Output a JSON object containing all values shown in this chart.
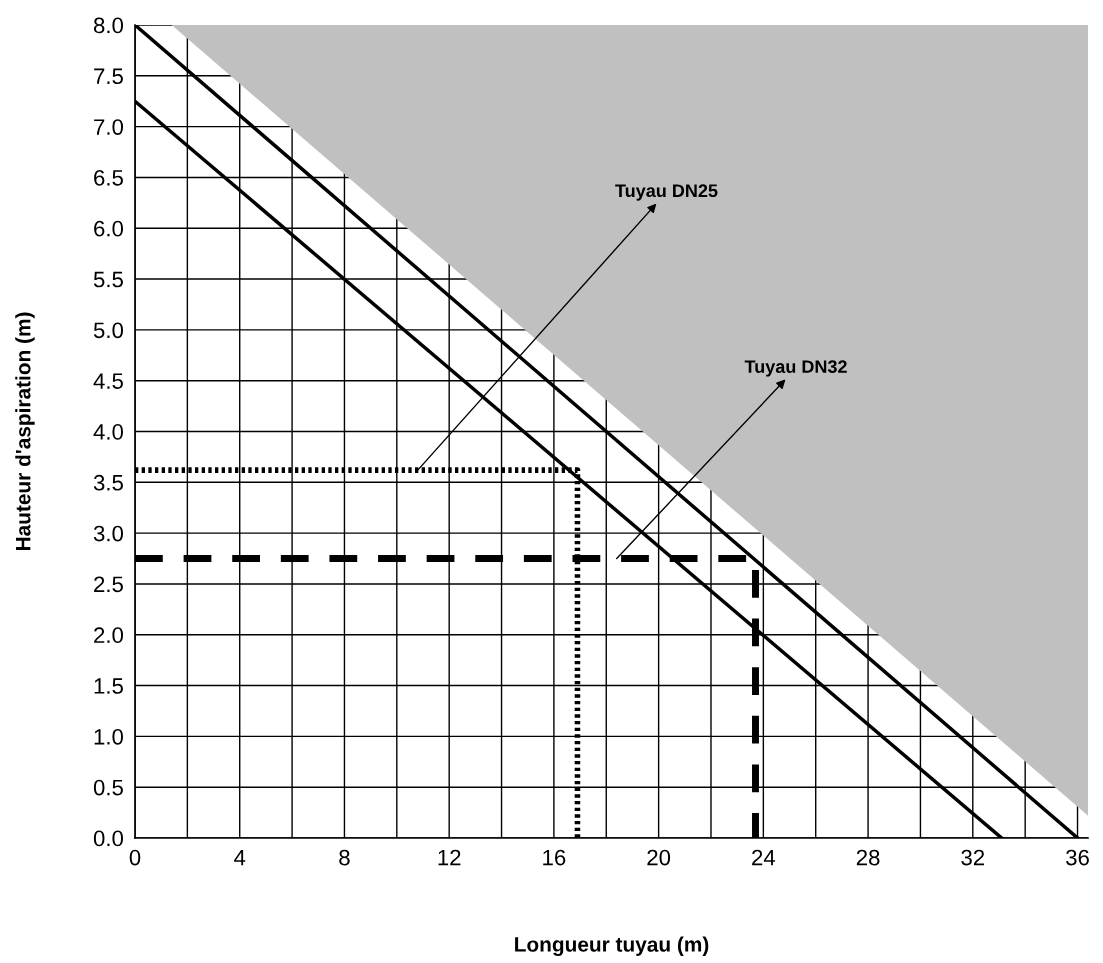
{
  "chart_data": {
    "type": "line",
    "xlabel": "Longueur tuyau (m)",
    "ylabel": "Hauteur d'aspiration (m)",
    "xlim": [
      0,
      36.4
    ],
    "ylim": [
      0,
      8.0
    ],
    "xticks": [
      0,
      {
        "value": 2,
        "label": null
      },
      4,
      {
        "value": 6,
        "label": null
      },
      8,
      {
        "value": 10,
        "label": null
      },
      12,
      {
        "value": 14,
        "label": null
      },
      16,
      {
        "value": 18,
        "label": null
      },
      20,
      {
        "value": 22,
        "label": null
      },
      24,
      {
        "value": 26,
        "label": null
      },
      28,
      {
        "value": 30,
        "label": null
      },
      32,
      {
        "value": 34,
        "label": null
      },
      36
    ],
    "yticks": [
      {
        "value": 0,
        "label": "0.0"
      },
      {
        "value": 0.5,
        "label": "0.5"
      },
      {
        "value": 1,
        "label": "1.0"
      },
      {
        "value": 1.5,
        "label": "1.5"
      },
      {
        "value": 2,
        "label": "2.0"
      },
      {
        "value": 2.5,
        "label": "2.5"
      },
      {
        "value": 3,
        "label": "3.0"
      },
      {
        "value": 3.5,
        "label": "3.5"
      },
      {
        "value": 4,
        "label": "4.0"
      },
      {
        "value": 4.5,
        "label": "4.5"
      },
      {
        "value": 5,
        "label": "5.0"
      },
      {
        "value": 5.5,
        "label": "5.5"
      },
      {
        "value": 6,
        "label": "6.0"
      },
      {
        "value": 6.5,
        "label": "6.5"
      },
      {
        "value": 7,
        "label": "7.0"
      },
      {
        "value": 7.5,
        "label": "7.5"
      },
      {
        "value": 8,
        "label": "8.0"
      }
    ],
    "grid": true,
    "legend": false,
    "marker": "none",
    "series": [
      {
        "type": "area",
        "color": "#c0c0c0",
        "x": [
          1.4,
          36.4
        ],
        "values": [
          8.0,
          0.22
        ]
      },
      {
        "color": "#000000",
        "x": [
          0,
          36
        ],
        "values": [
          8.0,
          0
        ]
      },
      {
        "color": "#000000",
        "x": [
          0,
          33.1
        ],
        "values": [
          7.25,
          0
        ]
      },
      {
        "color": "#000000",
        "line_style": "dotted",
        "x": [
          0,
          16.9,
          16.9
        ],
        "values": [
          3.62,
          3.62,
          0
        ]
      },
      {
        "color": "#000000",
        "line_style": "dashed",
        "x": [
          0,
          23.7,
          23.7
        ],
        "values": [
          2.75,
          2.75,
          0
        ]
      }
    ],
    "annotations": [
      {
        "text": "Tuyau DN25",
        "x": 10.8,
        "y": 3.62
      },
      {
        "text": "Tuyau DN32",
        "x": 18.4,
        "y": 2.75
      }
    ]
  }
}
